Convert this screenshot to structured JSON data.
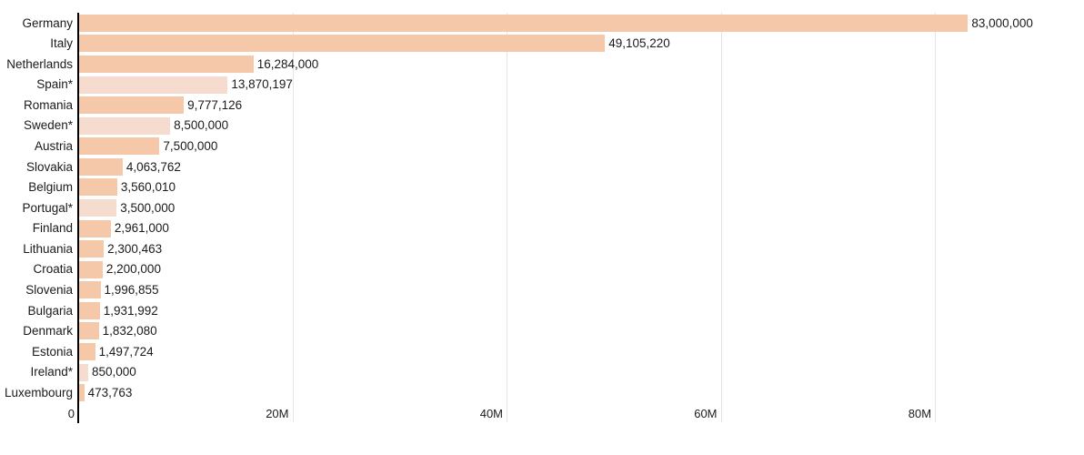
{
  "chart_data": {
    "type": "bar",
    "orientation": "horizontal",
    "title": "",
    "xlabel": "",
    "ylabel": "",
    "legend": "none",
    "grid": "vertical-gridlines-at-ticks",
    "categories": [
      "Germany",
      "Italy",
      "Netherlands",
      "Spain*",
      "Romania",
      "Sweden*",
      "Austria",
      "Slovakia",
      "Belgium",
      "Portugal*",
      "Finland",
      "Lithuania",
      "Croatia",
      "Slovenia",
      "Bulgaria",
      "Denmark",
      "Estonia",
      "Ireland*",
      "Luxembourg"
    ],
    "values": [
      83000000,
      49105220,
      16284000,
      13870197,
      9777126,
      8500000,
      7500000,
      4063762,
      3560010,
      3500000,
      2961000,
      2300463,
      2200000,
      1996855,
      1931992,
      1832080,
      1497724,
      850000,
      473763
    ],
    "value_labels": [
      "83,000,000",
      "49,105,220",
      "16,284,000",
      "13,870,197",
      "9,777,126",
      "8,500,000",
      "7,500,000",
      "4,063,762",
      "3,560,010",
      "3,500,000",
      "2,961,000",
      "2,300,463",
      "2,200,000",
      "1,996,855",
      "1,931,992",
      "1,832,080",
      "1,497,724",
      "850,000",
      "473,763"
    ],
    "estimated": [
      false,
      false,
      false,
      true,
      false,
      true,
      false,
      false,
      false,
      true,
      false,
      false,
      false,
      false,
      false,
      false,
      false,
      true,
      false
    ],
    "x_ticks": [
      {
        "value": 0,
        "label": "0"
      },
      {
        "value": 20000000,
        "label": "20M"
      },
      {
        "value": 40000000,
        "label": "40M"
      },
      {
        "value": 60000000,
        "label": "60M"
      },
      {
        "value": 80000000,
        "label": "80M"
      }
    ],
    "xlim": [
      0,
      92820000
    ],
    "colors": {
      "bar": "#f5c8aa",
      "bar_estimated": "#f5dccf",
      "axis_line": "#000000",
      "gridline": "#e4e4e4",
      "text": "#1a1a1a"
    }
  }
}
